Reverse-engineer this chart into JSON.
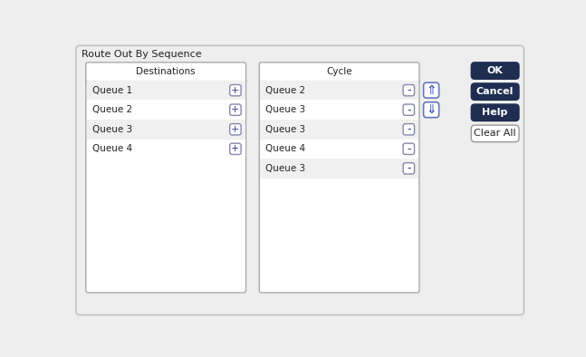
{
  "title": "Route Out By Sequence",
  "title_fontsize": 8,
  "bg_color": "#e8e8e8",
  "panel_bg": "#ffffff",
  "panel_border": "#aaaaaa",
  "row_alt_color": "#f0f0f0",
  "row_white": "#ffffff",
  "dest_header": "Destinations",
  "dest_items": [
    "Queue 1",
    "Queue 2",
    "Queue 3",
    "Queue 4"
  ],
  "cycle_header": "Cycle",
  "cycle_items": [
    "Queue 2",
    "Queue 3",
    "Queue 3",
    "Queue 4",
    "Queue 3"
  ],
  "buttons_main": [
    "OK",
    "Cancel",
    "Help"
  ],
  "buttons_clear": [
    "Clear All"
  ],
  "btn_dark_color": "#1e2d50",
  "btn_dark_text": "#ffffff",
  "btn_light_color": "#ffffff",
  "btn_light_text": "#222222",
  "btn_border": "#999999",
  "plus_btn_color": "#ffffff",
  "plus_btn_border": "#8888aa",
  "minus_btn_color": "#ffffff",
  "minus_btn_border": "#8888aa",
  "arrow_btn_color": "#ffffff",
  "arrow_btn_border": "#6677bb",
  "arrow_color": "#2244bb",
  "text_color": "#222222",
  "header_fontsize": 7.5,
  "item_fontsize": 7.5,
  "btn_fontsize": 8,
  "outer_border_color": "#bbbbbb",
  "outer_bg": "#eeeeee"
}
